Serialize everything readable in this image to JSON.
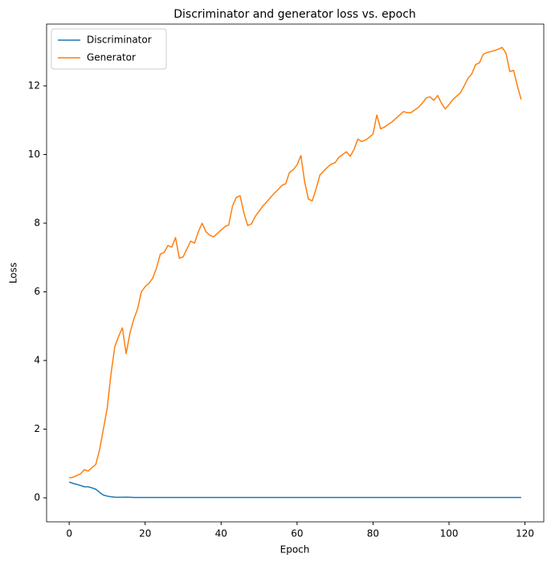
{
  "chart_data": {
    "type": "line",
    "title": "Discriminator and generator loss vs. epoch",
    "x_label": "Epoch",
    "y_label": "Loss",
    "x": [
      0,
      1,
      2,
      3,
      4,
      5,
      6,
      7,
      8,
      9,
      10,
      11,
      12,
      13,
      14,
      15,
      16,
      17,
      18,
      19,
      20,
      21,
      22,
      23,
      24,
      25,
      26,
      27,
      28,
      29,
      30,
      31,
      32,
      33,
      34,
      35,
      36,
      37,
      38,
      39,
      40,
      41,
      42,
      43,
      44,
      45,
      46,
      47,
      48,
      49,
      50,
      51,
      52,
      53,
      54,
      55,
      56,
      57,
      58,
      59,
      60,
      61,
      62,
      63,
      64,
      65,
      66,
      67,
      68,
      69,
      70,
      71,
      72,
      73,
      74,
      75,
      76,
      77,
      78,
      79,
      80,
      81,
      82,
      83,
      84,
      85,
      86,
      87,
      88,
      89,
      90,
      91,
      92,
      93,
      94,
      95,
      96,
      97,
      98,
      99,
      100,
      101,
      102,
      103,
      104,
      105,
      106,
      107,
      108,
      109,
      110,
      111,
      112,
      113,
      114,
      115,
      116,
      117,
      118,
      119
    ],
    "series": [
      {
        "name": "Discriminator",
        "color": "#1f77b4",
        "values": [
          0.46,
          0.42,
          0.39,
          0.36,
          0.32,
          0.32,
          0.29,
          0.25,
          0.16,
          0.08,
          0.05,
          0.03,
          0.02,
          0.015,
          0.015,
          0.02,
          0.015,
          0.01,
          0.01,
          0.01,
          0.01,
          0.01,
          0.01,
          0.01,
          0.01,
          0.01,
          0.01,
          0.01,
          0.01,
          0.01,
          0.01,
          0.01,
          0.01,
          0.01,
          0.01,
          0.01,
          0.01,
          0.01,
          0.01,
          0.01,
          0.01,
          0.01,
          0.01,
          0.01,
          0.01,
          0.01,
          0.01,
          0.01,
          0.01,
          0.01,
          0.01,
          0.01,
          0.01,
          0.01,
          0.01,
          0.01,
          0.01,
          0.01,
          0.01,
          0.01,
          0.01,
          0.01,
          0.01,
          0.01,
          0.01,
          0.01,
          0.01,
          0.01,
          0.01,
          0.01,
          0.01,
          0.01,
          0.01,
          0.01,
          0.01,
          0.01,
          0.01,
          0.01,
          0.01,
          0.01,
          0.01,
          0.01,
          0.01,
          0.01,
          0.01,
          0.01,
          0.01,
          0.01,
          0.01,
          0.01,
          0.01,
          0.01,
          0.01,
          0.01,
          0.01,
          0.01,
          0.01,
          0.01,
          0.01,
          0.01,
          0.01,
          0.01,
          0.01,
          0.01,
          0.01,
          0.01,
          0.01,
          0.01,
          0.01,
          0.01,
          0.01,
          0.01,
          0.01,
          0.01,
          0.01,
          0.01,
          0.01,
          0.01,
          0.01,
          0.01
        ]
      },
      {
        "name": "Generator",
        "color": "#ff7f0e",
        "values": [
          0.58,
          0.6,
          0.65,
          0.7,
          0.82,
          0.78,
          0.88,
          0.97,
          1.4,
          2.0,
          2.6,
          3.6,
          4.4,
          4.7,
          4.95,
          4.2,
          4.8,
          5.2,
          5.5,
          6.0,
          6.15,
          6.25,
          6.4,
          6.7,
          7.1,
          7.15,
          7.35,
          7.3,
          7.58,
          6.98,
          7.02,
          7.25,
          7.48,
          7.42,
          7.75,
          8.0,
          7.75,
          7.65,
          7.6,
          7.7,
          7.8,
          7.9,
          7.95,
          8.5,
          8.75,
          8.8,
          8.3,
          7.93,
          7.98,
          8.2,
          8.35,
          8.5,
          8.62,
          8.75,
          8.87,
          8.98,
          9.1,
          9.15,
          9.48,
          9.56,
          9.7,
          9.97,
          9.2,
          8.7,
          8.65,
          9.0,
          9.4,
          9.52,
          9.63,
          9.72,
          9.76,
          9.92,
          10.0,
          10.08,
          9.95,
          10.15,
          10.45,
          10.38,
          10.42,
          10.5,
          10.6,
          11.15,
          10.75,
          10.8,
          10.88,
          10.95,
          11.05,
          11.15,
          11.25,
          11.22,
          11.22,
          11.3,
          11.38,
          11.5,
          11.65,
          11.68,
          11.58,
          11.72,
          11.5,
          11.33,
          11.45,
          11.6,
          11.7,
          11.8,
          12.0,
          12.22,
          12.35,
          12.62,
          12.67,
          12.92,
          12.97,
          13.0,
          13.03,
          13.07,
          13.12,
          12.95,
          12.42,
          12.45,
          12.0,
          11.6
        ]
      }
    ],
    "xlim": [
      -5.95,
      124.95
    ],
    "xticks": [
      0,
      20,
      40,
      60,
      80,
      100,
      120
    ],
    "ylim": [
      -0.7,
      13.8
    ],
    "yticks": [
      0,
      2,
      4,
      6,
      8,
      10,
      12
    ],
    "legend": "upper left"
  }
}
